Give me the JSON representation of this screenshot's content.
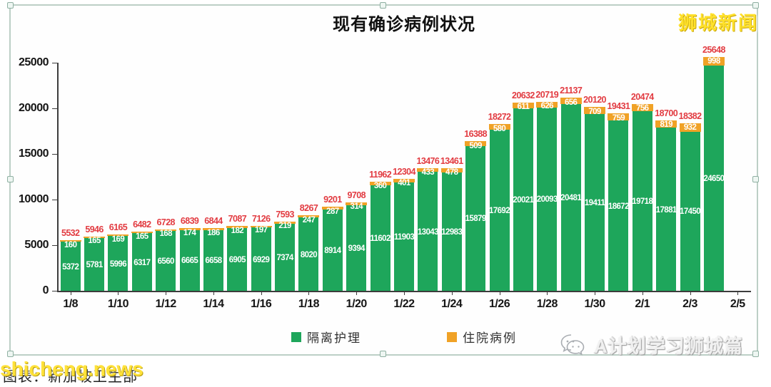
{
  "title": "现有确诊病例状况",
  "watermarks": {
    "top_right": "狮城新闻",
    "bottom_left_yellow": "shicheng.news",
    "bottom_left_black": "图表：新加坡卫生部",
    "bottom_right": "A计划学习狮城篇",
    "bottom_right_icon": "wechat-icon"
  },
  "colors": {
    "isolation_green": "#1ea65b",
    "hospital_orange": "#f0a226",
    "total_label_red": "#e23b41",
    "watermark_yellow": "#ffe12b",
    "axis": "#3c3c3c"
  },
  "legend": [
    {
      "label": "隔离护理",
      "color": "#1ea65b"
    },
    {
      "label": "住院病例",
      "color": "#f0a226"
    }
  ],
  "chart_data": {
    "type": "bar",
    "stacked": true,
    "title": "现有确诊病例状况",
    "ylim": [
      0,
      25000
    ],
    "yticks": [
      0,
      5000,
      10000,
      15000,
      20000,
      25000
    ],
    "grid": false,
    "legend_position": "bottom",
    "dates": [
      "1/8",
      "1/9",
      "1/10",
      "1/11",
      "1/12",
      "1/13",
      "1/14",
      "1/15",
      "1/16",
      "1/17",
      "1/18",
      "1/19",
      "1/20",
      "1/21",
      "1/22",
      "1/23",
      "1/24",
      "1/25",
      "1/26",
      "1/27",
      "1/28",
      "1/29",
      "1/30",
      "1/31",
      "2/1",
      "2/2",
      "2/3",
      "2/4"
    ],
    "x_tick_labels": [
      "1/8",
      "1/10",
      "1/12",
      "1/14",
      "1/16",
      "1/18",
      "1/20",
      "1/22",
      "1/24",
      "1/26",
      "1/28",
      "1/30",
      "2/1",
      "2/3",
      "2/5"
    ],
    "series": [
      {
        "name": "隔离护理",
        "color": "#1ea65b",
        "values": [
          5372,
          5781,
          5996,
          6317,
          6560,
          6665,
          6658,
          6905,
          6929,
          7374,
          8020,
          8914,
          9394,
          11602,
          11903,
          13043,
          12983,
          15879,
          17692,
          20021,
          20093,
          20481,
          19411,
          18672,
          19718,
          17881,
          17450,
          24650
        ]
      },
      {
        "name": "住院病例",
        "color": "#f0a226",
        "values": [
          160,
          165,
          169,
          165,
          168,
          174,
          186,
          182,
          197,
          219,
          247,
          287,
          314,
          360,
          401,
          433,
          478,
          509,
          580,
          611,
          626,
          656,
          709,
          759,
          756,
          819,
          932,
          998
        ]
      }
    ],
    "totals": [
      5532,
      5946,
      6165,
      6482,
      6728,
      6839,
      6844,
      7087,
      7126,
      7593,
      8267,
      9201,
      9708,
      11962,
      12304,
      13476,
      13461,
      16388,
      18272,
      20632,
      20719,
      21137,
      20120,
      19431,
      20474,
      18700,
      18382,
      25648
    ]
  }
}
